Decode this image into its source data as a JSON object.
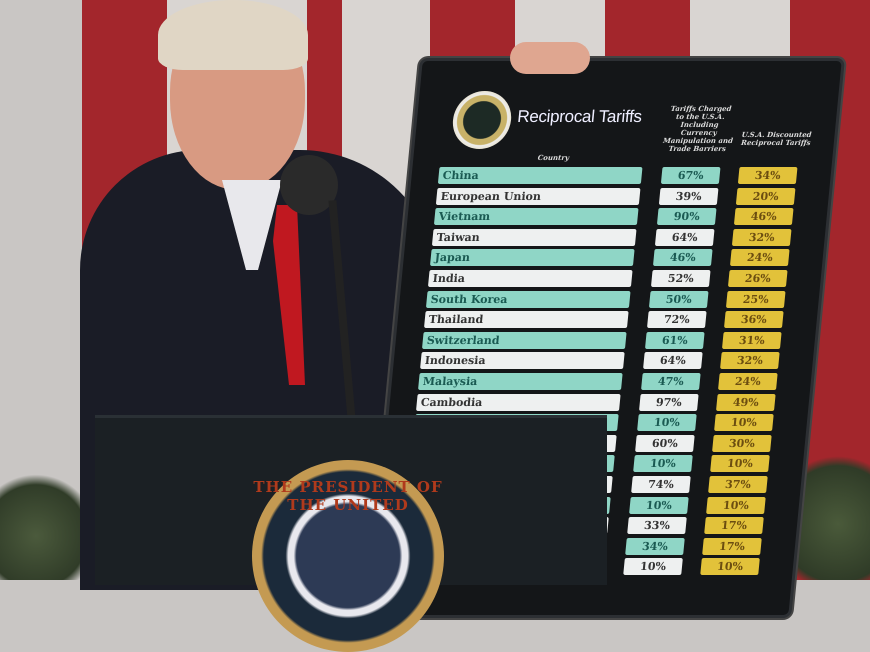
{
  "board": {
    "title": "Reciprocal Tariffs",
    "country_header": "Country",
    "charged_header": "Tariffs Charged to the U.S.A. Including Currency Manipulation and Trade Barriers",
    "discounted_header": "U.S.A. Discounted Reciprocal Tariffs",
    "rows": [
      {
        "country": "China",
        "charged": "67%",
        "discounted": "34%"
      },
      {
        "country": "European Union",
        "charged": "39%",
        "discounted": "20%"
      },
      {
        "country": "Vietnam",
        "charged": "90%",
        "discounted": "46%"
      },
      {
        "country": "Taiwan",
        "charged": "64%",
        "discounted": "32%"
      },
      {
        "country": "Japan",
        "charged": "46%",
        "discounted": "24%"
      },
      {
        "country": "India",
        "charged": "52%",
        "discounted": "26%"
      },
      {
        "country": "South Korea",
        "charged": "50%",
        "discounted": "25%"
      },
      {
        "country": "Thailand",
        "charged": "72%",
        "discounted": "36%"
      },
      {
        "country": "Switzerland",
        "charged": "61%",
        "discounted": "31%"
      },
      {
        "country": "Indonesia",
        "charged": "64%",
        "discounted": "32%"
      },
      {
        "country": "Malaysia",
        "charged": "47%",
        "discounted": "24%"
      },
      {
        "country": "Cambodia",
        "charged": "97%",
        "discounted": "49%"
      },
      {
        "country": "",
        "charged": "10%",
        "discounted": "10%"
      },
      {
        "country": "",
        "charged": "60%",
        "discounted": "30%"
      },
      {
        "country": "",
        "charged": "10%",
        "discounted": "10%"
      },
      {
        "country": "",
        "charged": "74%",
        "discounted": "37%"
      },
      {
        "country": "",
        "charged": "10%",
        "discounted": "10%"
      },
      {
        "country": "",
        "charged": "33%",
        "discounted": "17%"
      },
      {
        "country": "",
        "charged": "34%",
        "discounted": "17%"
      },
      {
        "country": "",
        "charged": "10%",
        "discounted": "10%"
      }
    ],
    "colors": {
      "teal": "#8fd6c6",
      "white": "#eef0f0",
      "gold": "#e2c23a",
      "board": "#141618"
    }
  },
  "podium": {
    "seal_text": "THE PRESIDENT OF THE UNITED"
  }
}
